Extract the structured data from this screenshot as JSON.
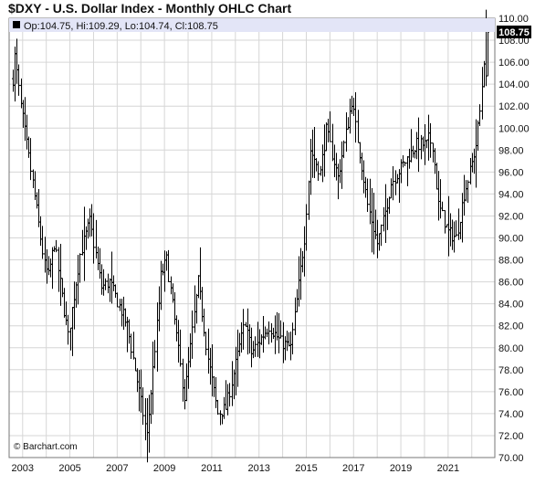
{
  "header": {
    "title": "$DXY - U.S. Dollar Index - Monthly OHLC Chart"
  },
  "ohlc_readout": {
    "text": "Op:104.75, Hi:109.29, Lo:104.74, Cl:108.75"
  },
  "credit": {
    "text": "© Barchart.com"
  },
  "colors": {
    "bars": "#000000",
    "grid": "#d6d6d6",
    "frame": "#777777",
    "readout_bg": "#e3e5f7",
    "last_price_bg": "#000000"
  },
  "chart_data": {
    "type": "ohlc",
    "title": "$DXY - U.S. Dollar Index - Monthly OHLC Chart",
    "xlabel": "",
    "ylabel": "",
    "x_range": [
      "2002-08",
      "2022-09"
    ],
    "ylim": [
      70,
      110
    ],
    "y_ticks": [
      "110.00",
      "108.00",
      "106.00",
      "104.00",
      "102.00",
      "100.00",
      "98.00",
      "96.00",
      "94.00",
      "92.00",
      "90.00",
      "88.00",
      "86.00",
      "84.00",
      "82.00",
      "80.00",
      "78.00",
      "76.00",
      "74.00",
      "72.00",
      "70.00"
    ],
    "x_ticks": [
      "2003",
      "2005",
      "2007",
      "2009",
      "2011",
      "2013",
      "2015",
      "2017",
      "2019",
      "2021"
    ],
    "grid": true,
    "last_price": "108.75",
    "anchors": [
      [
        "2002-08",
        104.5
      ],
      [
        "2002-09",
        106.5
      ],
      [
        "2002-12",
        102.0
      ],
      [
        "2003-06",
        95.0
      ],
      [
        "2003-12",
        87.5
      ],
      [
        "2004-02",
        86.5
      ],
      [
        "2004-05",
        89.5
      ],
      [
        "2004-12",
        81.0
      ],
      [
        "2005-06",
        88.5
      ],
      [
        "2005-11",
        91.5
      ],
      [
        "2006-05",
        85.5
      ],
      [
        "2006-09",
        86.0
      ],
      [
        "2007-06",
        82.0
      ],
      [
        "2007-12",
        76.0
      ],
      [
        "2008-04",
        72.0
      ],
      [
        "2008-10",
        84.0
      ],
      [
        "2008-11",
        86.5
      ],
      [
        "2009-02",
        88.0
      ],
      [
        "2009-11",
        75.5
      ],
      [
        "2010-06",
        86.0
      ],
      [
        "2010-11",
        79.0
      ],
      [
        "2011-04",
        74.0
      ],
      [
        "2011-08",
        74.5
      ],
      [
        "2012-06",
        82.5
      ],
      [
        "2012-09",
        79.5
      ],
      [
        "2013-06",
        82.0
      ],
      [
        "2013-12",
        80.5
      ],
      [
        "2014-05",
        80.0
      ],
      [
        "2014-12",
        90.0
      ],
      [
        "2015-03",
        98.0
      ],
      [
        "2015-08",
        96.0
      ],
      [
        "2015-11",
        99.8
      ],
      [
        "2016-05",
        95.5
      ],
      [
        "2016-12",
        102.5
      ],
      [
        "2017-08",
        93.0
      ],
      [
        "2018-01",
        89.5
      ],
      [
        "2018-04",
        91.5
      ],
      [
        "2018-08",
        95.0
      ],
      [
        "2019-05",
        97.5
      ],
      [
        "2019-09",
        98.5
      ],
      [
        "2020-02",
        98.5
      ],
      [
        "2020-03",
        99.0
      ],
      [
        "2020-05",
        98.5
      ],
      [
        "2020-08",
        93.0
      ],
      [
        "2021-01",
        90.5
      ],
      [
        "2021-05",
        90.0
      ],
      [
        "2021-09",
        94.0
      ],
      [
        "2021-12",
        96.0
      ],
      [
        "2022-03",
        98.5
      ],
      [
        "2022-05",
        101.5
      ],
      [
        "2022-08",
        108.7
      ],
      [
        "2022-09",
        108.75
      ]
    ],
    "last_bar": {
      "date": "2022-09",
      "open": 104.75,
      "high": 109.29,
      "low": 104.74,
      "close": 108.75
    }
  }
}
